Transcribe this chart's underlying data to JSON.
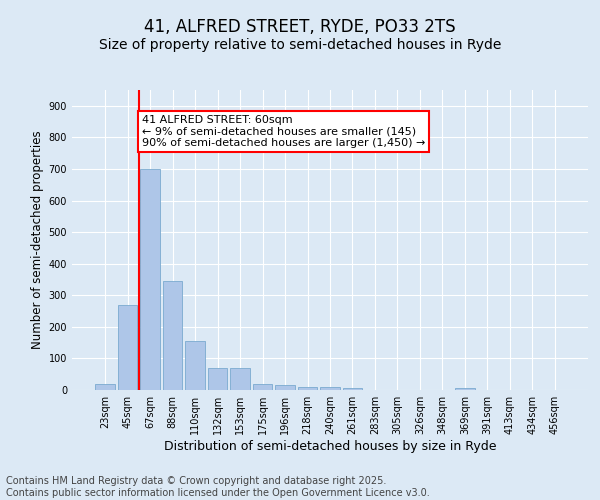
{
  "title": "41, ALFRED STREET, RYDE, PO33 2TS",
  "subtitle": "Size of property relative to semi-detached houses in Ryde",
  "xlabel": "Distribution of semi-detached houses by size in Ryde",
  "ylabel": "Number of semi-detached properties",
  "categories": [
    "23sqm",
    "45sqm",
    "67sqm",
    "88sqm",
    "110sqm",
    "132sqm",
    "153sqm",
    "175sqm",
    "196sqm",
    "218sqm",
    "240sqm",
    "261sqm",
    "283sqm",
    "305sqm",
    "326sqm",
    "348sqm",
    "369sqm",
    "391sqm",
    "413sqm",
    "434sqm",
    "456sqm"
  ],
  "values": [
    20,
    270,
    700,
    345,
    155,
    70,
    70,
    20,
    15,
    10,
    10,
    5,
    0,
    0,
    0,
    0,
    5,
    0,
    0,
    0,
    0
  ],
  "bar_color": "#aec6e8",
  "bar_edge_color": "#7aaad0",
  "annotation_text": "41 ALFRED STREET: 60sqm\n← 9% of semi-detached houses are smaller (145)\n90% of semi-detached houses are larger (1,450) →",
  "annotation_box_color": "white",
  "annotation_box_edge_color": "red",
  "vline_color": "red",
  "background_color": "#dce9f5",
  "plot_bg_color": "#dce9f5",
  "footer": "Contains HM Land Registry data © Crown copyright and database right 2025.\nContains public sector information licensed under the Open Government Licence v3.0.",
  "ylim": [
    0,
    950
  ],
  "title_fontsize": 12,
  "subtitle_fontsize": 10,
  "xlabel_fontsize": 9,
  "ylabel_fontsize": 8.5,
  "tick_fontsize": 7,
  "footer_fontsize": 7,
  "annotation_fontsize": 8,
  "vline_pos": 1.5
}
